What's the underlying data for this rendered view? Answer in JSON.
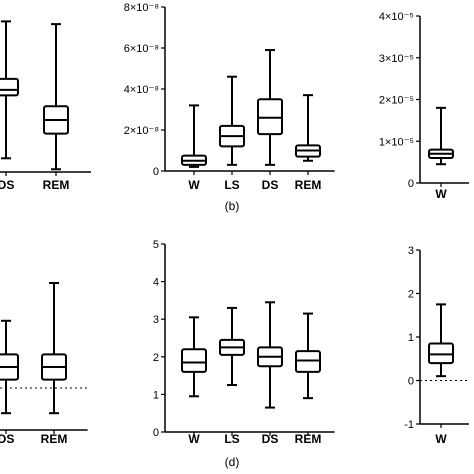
{
  "chart_data": [
    {
      "type": "box",
      "panel_label": "",
      "categories": [
        "DS",
        "REM"
      ],
      "series": [
        {
          "category": "DS",
          "min": 0.5,
          "q1": 2.8,
          "median": 3.0,
          "q3": 3.4,
          "max": 5.5
        },
        {
          "category": "REM",
          "min": 0.1,
          "q1": 1.4,
          "median": 1.9,
          "q3": 2.4,
          "max": 5.4
        }
      ],
      "yticks": [],
      "ylim": [
        0,
        6.5
      ],
      "grid": false
    },
    {
      "type": "box",
      "panel_label": "(b)",
      "categories": [
        "W",
        "LS",
        "DS",
        "REM"
      ],
      "series": [
        {
          "category": "W",
          "min": 2e-09,
          "q1": 3e-09,
          "median": 5e-09,
          "q3": 7.5e-09,
          "max": 3.2e-08
        },
        {
          "category": "LS",
          "min": 3e-09,
          "q1": 1.2e-08,
          "median": 1.7e-08,
          "q3": 2.2e-08,
          "max": 4.6e-08
        },
        {
          "category": "DS",
          "min": 3e-09,
          "q1": 1.8e-08,
          "median": 2.6e-08,
          "q3": 3.5e-08,
          "max": 5.9e-08
        },
        {
          "category": "REM",
          "min": 5e-09,
          "q1": 7e-09,
          "median": 1e-08,
          "q3": 1.25e-08,
          "max": 3.7e-08
        }
      ],
      "yticks": [
        {
          "value": 0,
          "label": "0"
        },
        {
          "value": 2e-08,
          "label": "2×10⁻⁸"
        },
        {
          "value": 4e-08,
          "label": "4×10⁻⁸"
        },
        {
          "value": 6e-08,
          "label": "6×10⁻⁸"
        },
        {
          "value": 8e-08,
          "label": "8×10⁻⁸"
        }
      ],
      "ylim": [
        0,
        8e-08
      ],
      "grid": false
    },
    {
      "type": "box",
      "panel_label": "",
      "categories": [
        "W"
      ],
      "series": [
        {
          "category": "W",
          "min": 4.5e-06,
          "q1": 6e-06,
          "median": 7e-06,
          "q3": 8e-06,
          "max": 1.8e-05
        }
      ],
      "yticks": [
        {
          "value": 0,
          "label": "0"
        },
        {
          "value": 1e-05,
          "label": "1×10⁻⁵"
        },
        {
          "value": 2e-05,
          "label": "2×10⁻⁵"
        },
        {
          "value": 3e-05,
          "label": "3×10⁻⁵"
        },
        {
          "value": 4e-05,
          "label": "4×10⁻⁵"
        }
      ],
      "ylim": [
        0,
        4e-05
      ],
      "grid": false
    },
    {
      "type": "box",
      "panel_label": "",
      "categories": [
        "DS",
        "REM"
      ],
      "series": [
        {
          "category": "DS",
          "min": 0.4,
          "q1": 1.2,
          "median": 1.5,
          "q3": 1.8,
          "max": 2.6
        },
        {
          "category": "REM",
          "min": 0.4,
          "q1": 1.2,
          "median": 1.5,
          "q3": 1.8,
          "max": 3.5
        }
      ],
      "yticks": [],
      "ylim": [
        0,
        5
      ],
      "reference_line": 1,
      "grid": false
    },
    {
      "type": "box",
      "panel_label": "(d)",
      "categories": [
        "W",
        "LS",
        "DS",
        "REM"
      ],
      "series": [
        {
          "category": "W",
          "min": 0.95,
          "q1": 1.6,
          "median": 1.85,
          "q3": 2.2,
          "max": 3.05
        },
        {
          "category": "LS",
          "min": 1.25,
          "q1": 2.05,
          "median": 2.25,
          "q3": 2.45,
          "max": 3.3
        },
        {
          "category": "DS",
          "min": 0.65,
          "q1": 1.75,
          "median": 2.0,
          "q3": 2.25,
          "max": 3.45
        },
        {
          "category": "REM",
          "min": 0.9,
          "q1": 1.6,
          "median": 1.9,
          "q3": 2.15,
          "max": 3.15
        }
      ],
      "yticks": [
        {
          "value": 0,
          "label": "0"
        },
        {
          "value": 1,
          "label": "1"
        },
        {
          "value": 2,
          "label": "2"
        },
        {
          "value": 3,
          "label": "3"
        },
        {
          "value": 4,
          "label": "4"
        },
        {
          "value": 5,
          "label": "5"
        }
      ],
      "ylim": [
        0,
        5
      ],
      "grid": false
    },
    {
      "type": "box",
      "panel_label": "",
      "categories": [
        "W"
      ],
      "series": [
        {
          "category": "W",
          "min": 0.1,
          "q1": 0.4,
          "median": 0.6,
          "q3": 0.85,
          "max": 1.75
        }
      ],
      "yticks": [
        {
          "value": -1,
          "label": "-1"
        },
        {
          "value": 0,
          "label": "0"
        },
        {
          "value": 1,
          "label": "1"
        },
        {
          "value": 2,
          "label": "2"
        },
        {
          "value": 3,
          "label": "3"
        }
      ],
      "ylim": [
        -1,
        3
      ],
      "reference_line": 0,
      "grid": false
    }
  ]
}
